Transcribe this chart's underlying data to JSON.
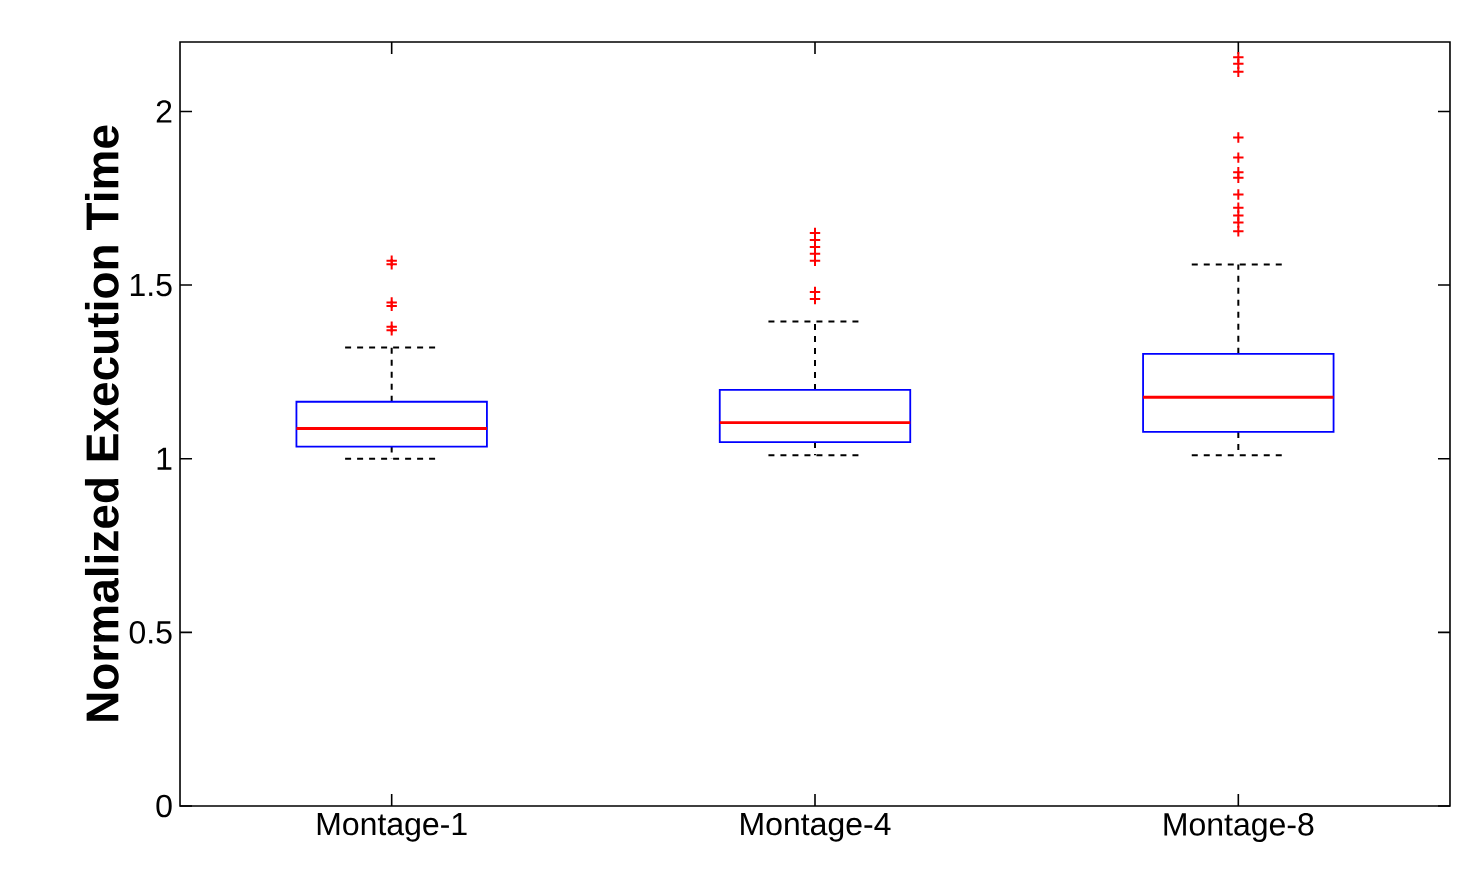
{
  "chart_data": {
    "type": "box",
    "ylabel": "Normalized Execution Time",
    "categories": [
      "Montage-1",
      "Montage-4",
      "Montage-8"
    ],
    "ylim": [
      0,
      2.2
    ],
    "yticks": [
      0,
      0.5,
      1,
      1.5,
      2
    ],
    "marker": "cross",
    "series": [
      {
        "color": "#0000ff",
        "boxes": [
          {
            "low": 1.0,
            "q1": 1.035,
            "median": 1.087,
            "q3": 1.164,
            "high": 1.32,
            "outliers": [
              1.37,
              1.38,
              1.44,
              1.45,
              1.56,
              1.57
            ]
          },
          {
            "low": 1.01,
            "q1": 1.048,
            "median": 1.104,
            "q3": 1.198,
            "high": 1.395,
            "outliers": [
              1.46,
              1.48,
              1.57,
              1.59,
              1.61,
              1.63,
              1.65
            ]
          },
          {
            "low": 1.01,
            "q1": 1.077,
            "median": 1.177,
            "q3": 1.302,
            "high": 1.559,
            "outliers": [
              1.655,
              1.68,
              1.7,
              1.723,
              1.761,
              1.809,
              1.825,
              1.867,
              1.925,
              2.114,
              2.137,
              2.156
            ]
          }
        ]
      }
    ]
  }
}
